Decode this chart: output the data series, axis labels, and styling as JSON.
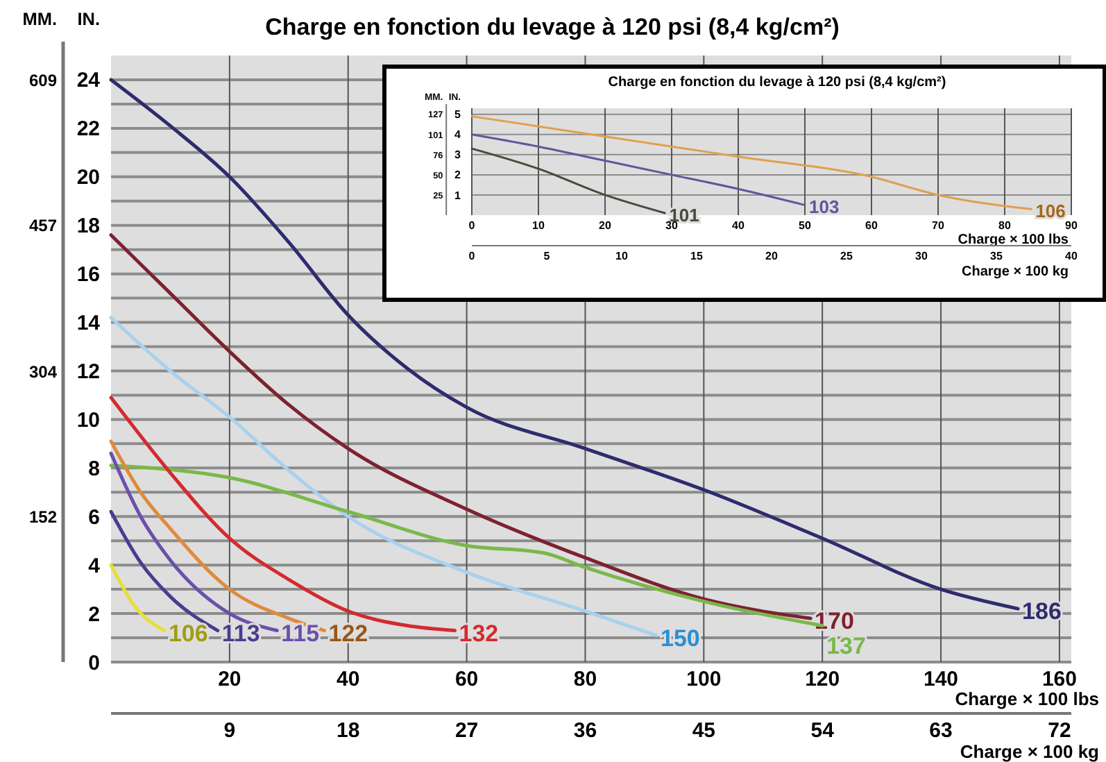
{
  "chart_data": [
    {
      "type": "line",
      "title": "Charge en fonction du levage à 120 psi (8,4 kg/cm²)",
      "xlabel": "Charge × 100 lbs",
      "x2label": "Charge × 100 kg",
      "ylabel": "IN.",
      "y2label": "MM.",
      "xlim": [
        0,
        162
      ],
      "xticks": [
        20,
        40,
        60,
        80,
        100,
        120,
        140,
        160
      ],
      "x2lim": [
        0,
        72.9
      ],
      "x2ticks": [
        9,
        18,
        27,
        36,
        45,
        54,
        63,
        72
      ],
      "ylim": [
        0,
        25
      ],
      "yticks": [
        0,
        {
          "value": 1,
          "label": null
        },
        2,
        {
          "value": 3,
          "label": null
        },
        4,
        {
          "value": 5,
          "label": null
        },
        6,
        {
          "value": 7,
          "label": null
        },
        8,
        {
          "value": 9,
          "label": null
        },
        10,
        {
          "value": 11,
          "label": null
        },
        12,
        {
          "value": 13,
          "label": null
        },
        14,
        {
          "value": 15,
          "label": null
        },
        16,
        {
          "value": 17,
          "label": null
        },
        18,
        {
          "value": 19,
          "label": null
        },
        20,
        {
          "value": 21,
          "label": null
        },
        22,
        {
          "value": 23,
          "label": null
        },
        24
      ],
      "y2lim": [
        0,
        635
      ],
      "y2ticks": [
        152,
        304,
        457,
        609
      ],
      "grid": true,
      "series": [
        {
          "name": "186",
          "color": "#2e2c6e",
          "x": [
            0,
            10,
            20,
            30,
            40,
            50,
            60,
            80,
            100,
            120,
            140,
            153
          ],
          "values": [
            24,
            22.1,
            20,
            17.3,
            14.3,
            12.1,
            10.5,
            8.8,
            7.1,
            5.1,
            3.0,
            2.2
          ]
        },
        {
          "name": "170",
          "color": "#7d2230",
          "x": [
            0,
            10,
            20,
            30,
            40,
            60,
            80,
            100,
            118
          ],
          "values": [
            17.6,
            15.2,
            12.8,
            10.6,
            8.8,
            6.3,
            4.3,
            2.6,
            1.8
          ]
        },
        {
          "name": "150",
          "color": "#a9d1ee",
          "x": [
            0,
            10,
            20,
            30,
            40,
            60,
            80,
            92
          ],
          "values": [
            14.2,
            12,
            10.1,
            7.9,
            6.0,
            3.7,
            2.1,
            1.1
          ]
        },
        {
          "name": "137",
          "color": "#7ab84a",
          "x": [
            0,
            20,
            40,
            60,
            73,
            80,
            100,
            120
          ],
          "values": [
            8.1,
            7.6,
            6.2,
            4.8,
            4.5,
            3.9,
            2.5,
            1.5
          ]
        },
        {
          "name": "132",
          "color": "#d42a2e",
          "x": [
            0,
            10,
            20,
            30,
            40,
            50,
            58
          ],
          "values": [
            10.9,
            7.8,
            5.1,
            3.4,
            2.1,
            1.5,
            1.3
          ]
        },
        {
          "name": "122",
          "color": "#e08a3c",
          "x": [
            0,
            5,
            10,
            20,
            30,
            36
          ],
          "values": [
            9.1,
            7.0,
            5.5,
            3.0,
            1.8,
            1.3
          ]
        },
        {
          "name": "115",
          "color": "#6b50aa",
          "x": [
            0,
            5,
            10,
            20,
            28
          ],
          "values": [
            8.6,
            6.0,
            4.2,
            2.0,
            1.3
          ]
        },
        {
          "name": "113",
          "color": "#4a3c8e",
          "x": [
            0,
            5,
            10,
            18
          ],
          "values": [
            6.2,
            4.1,
            2.7,
            1.3
          ]
        },
        {
          "name": "106",
          "color": "#e6df3c",
          "x": [
            0,
            4,
            9
          ],
          "values": [
            4.0,
            2.3,
            1.3
          ]
        }
      ]
    },
    {
      "type": "line",
      "title": "Charge en fonction du levage à 120 psi (8,4 kg/cm²)",
      "xlabel": "Charge × 100 lbs",
      "x2label": "Charge × 100 kg",
      "ylabel": "IN.",
      "y2label": "MM.",
      "xlim": [
        0,
        90
      ],
      "xticks": [
        0,
        10,
        20,
        30,
        40,
        50,
        60,
        70,
        80,
        90
      ],
      "x2lim": [
        0,
        40
      ],
      "x2ticks": [
        0,
        5,
        10,
        15,
        20,
        25,
        30,
        35,
        40
      ],
      "ylim": [
        0,
        5.3
      ],
      "yticks": [
        1,
        2,
        3,
        4,
        5
      ],
      "y2lim": [
        0,
        134.6
      ],
      "y2ticks": [
        25,
        50,
        76,
        101,
        127
      ],
      "grid": true,
      "series": [
        {
          "name": "101",
          "color": "#4a4a3c",
          "x": [
            0,
            10,
            20,
            29
          ],
          "values": [
            3.3,
            2.3,
            1.0,
            0.1
          ]
        },
        {
          "name": "103",
          "color": "#5a5a9c",
          "x": [
            0,
            10,
            20,
            30,
            40,
            50
          ],
          "values": [
            4.0,
            3.4,
            2.7,
            2.0,
            1.3,
            0.5
          ]
        },
        {
          "name": "106",
          "color": "#e0a050",
          "x": [
            0,
            20,
            40,
            60,
            70,
            84
          ],
          "values": [
            4.9,
            3.9,
            2.9,
            1.9,
            1.0,
            0.3
          ]
        }
      ]
    }
  ]
}
